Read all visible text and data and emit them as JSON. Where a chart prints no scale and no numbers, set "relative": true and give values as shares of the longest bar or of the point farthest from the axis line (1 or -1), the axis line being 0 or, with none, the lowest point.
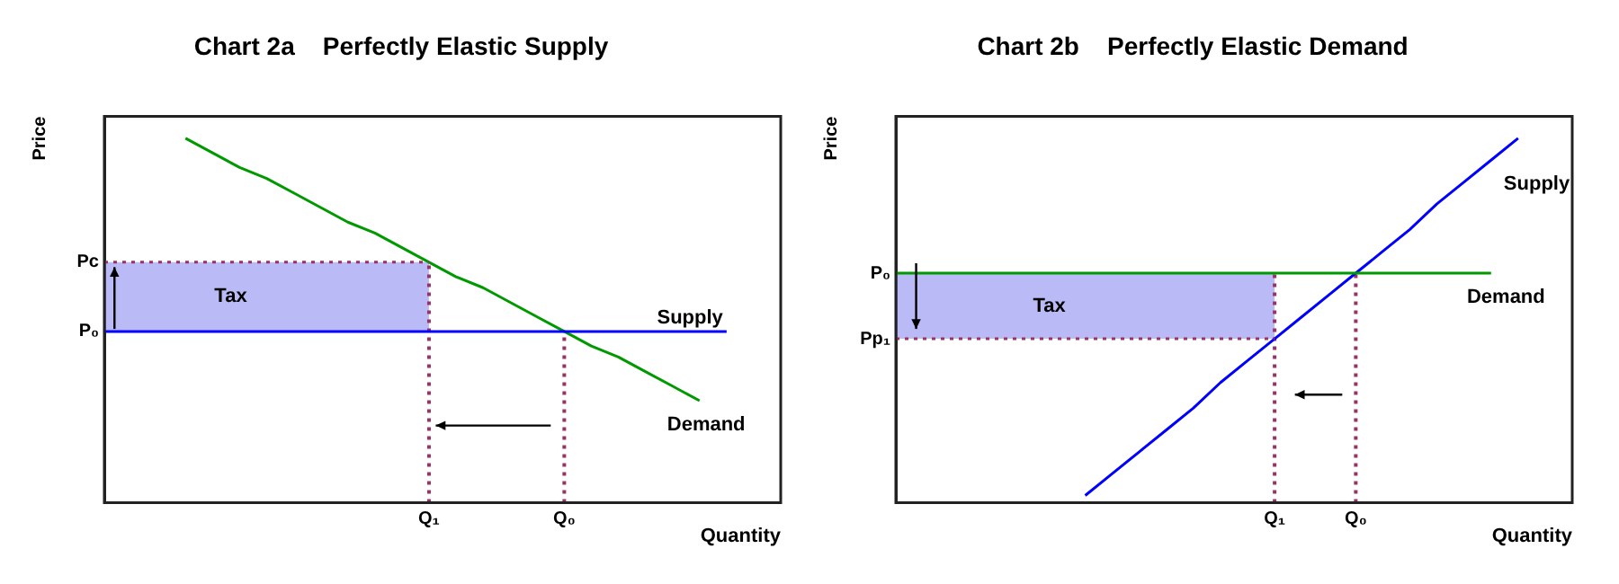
{
  "chart_data": [
    {
      "type": "line",
      "title": "Chart 2a    Perfectly Elastic Supply",
      "xlabel": "Quantity",
      "ylabel": "Price",
      "relative": true,
      "categories": [
        null,
        null,
        null,
        null,
        null,
        null,
        null,
        null,
        null,
        null,
        null,
        null,
        "Q₁",
        null,
        null,
        null,
        null,
        "Q₀",
        null,
        null,
        null,
        null,
        null,
        null,
        null,
        null
      ],
      "grid": false,
      "legend": false,
      "marker": "none",
      "series": [
        {
          "type": "line",
          "color": "#993366",
          "line_style": "dotted",
          "values": [
            0.66,
            0.66,
            0.66,
            0.66,
            0.66,
            0.66,
            0.66,
            0.66,
            0.66,
            0.66,
            0.66,
            0.66,
            0.66,
            null,
            null,
            null,
            null,
            null,
            null,
            null,
            null,
            null,
            null,
            null,
            null,
            null
          ]
        },
        {
          "type": "line",
          "name": "Supply",
          "color": "#0000ff",
          "values": [
            0.47,
            0.47,
            0.47,
            0.47,
            0.47,
            0.47,
            0.47,
            0.47,
            0.47,
            0.47,
            0.47,
            0.47,
            0.47,
            0.47,
            0.47,
            0.47,
            0.47,
            0.47,
            0.47,
            0.47,
            0.47,
            0.47,
            0.47,
            0.47,
            null,
            null
          ]
        },
        {
          "type": "line",
          "name": "Demand",
          "color": "#009900",
          "values": [
            null,
            null,
            null,
            1.0,
            0.96,
            0.92,
            0.89,
            0.85,
            0.81,
            0.77,
            0.74,
            0.7,
            0.66,
            0.62,
            0.59,
            0.55,
            0.51,
            0.47,
            0.43,
            0.4,
            0.36,
            0.32,
            0.28,
            null,
            null,
            null
          ]
        }
      ],
      "bands": [
        {
          "axis": "y",
          "from": 0.47,
          "to": 0.66,
          "label": "Tax",
          "color": "#8c8cf0"
        }
      ],
      "ref_lines": [
        {
          "axis": "x",
          "value": "Q₁",
          "color": "#993366",
          "line_style": "dotted"
        },
        {
          "axis": "x",
          "value": "Q₀",
          "color": "#993366",
          "line_style": "dotted"
        }
      ],
      "annotations": [
        "Pc",
        "P₀"
      ]
    },
    {
      "type": "line",
      "title": "Chart 2b    Perfectly Elastic Demand",
      "xlabel": "Quantity",
      "ylabel": "Price",
      "relative": true,
      "categories": [
        null,
        null,
        null,
        null,
        null,
        null,
        null,
        null,
        null,
        null,
        null,
        null,
        null,
        null,
        "Q₁",
        null,
        null,
        "Q₀",
        null,
        null,
        null,
        null,
        null,
        null,
        null,
        null
      ],
      "grid": false,
      "legend": false,
      "marker": "none",
      "series": [
        {
          "type": "line",
          "color": "#993366",
          "line_style": "dotted",
          "values": [
            0.45,
            0.45,
            0.45,
            0.45,
            0.45,
            0.45,
            0.45,
            0.45,
            0.45,
            0.45,
            0.45,
            0.45,
            0.45,
            0.45,
            0.45,
            null,
            null,
            null,
            null,
            null,
            null,
            null,
            null,
            null,
            null,
            null
          ]
        },
        {
          "type": "line",
          "name": "Demand",
          "color": "#009900",
          "values": [
            0.63,
            0.63,
            0.63,
            0.63,
            0.63,
            0.63,
            0.63,
            0.63,
            0.63,
            0.63,
            0.63,
            0.63,
            0.63,
            0.63,
            0.63,
            0.63,
            0.63,
            0.63,
            0.63,
            0.63,
            0.63,
            0.63,
            0.63,
            null,
            null,
            null
          ]
        },
        {
          "type": "line",
          "name": "Supply",
          "color": "#0000ff",
          "values": [
            null,
            null,
            null,
            null,
            null,
            null,
            null,
            0.02,
            0.08,
            0.14,
            0.2,
            0.26,
            0.33,
            0.39,
            0.45,
            0.51,
            0.57,
            0.63,
            0.69,
            0.75,
            0.82,
            0.88,
            0.94,
            1.0,
            null,
            null
          ]
        }
      ],
      "bands": [
        {
          "axis": "y",
          "from": 0.45,
          "to": 0.63,
          "label": "Tax",
          "color": "#8c8cf0"
        }
      ],
      "ref_lines": [
        {
          "axis": "x",
          "value": "Q₁",
          "color": "#993366",
          "line_style": "dotted"
        },
        {
          "axis": "x",
          "value": "Q₀",
          "color": "#993366",
          "line_style": "dotted"
        }
      ],
      "annotations": [
        "P₀",
        "Pp₁"
      ]
    }
  ]
}
